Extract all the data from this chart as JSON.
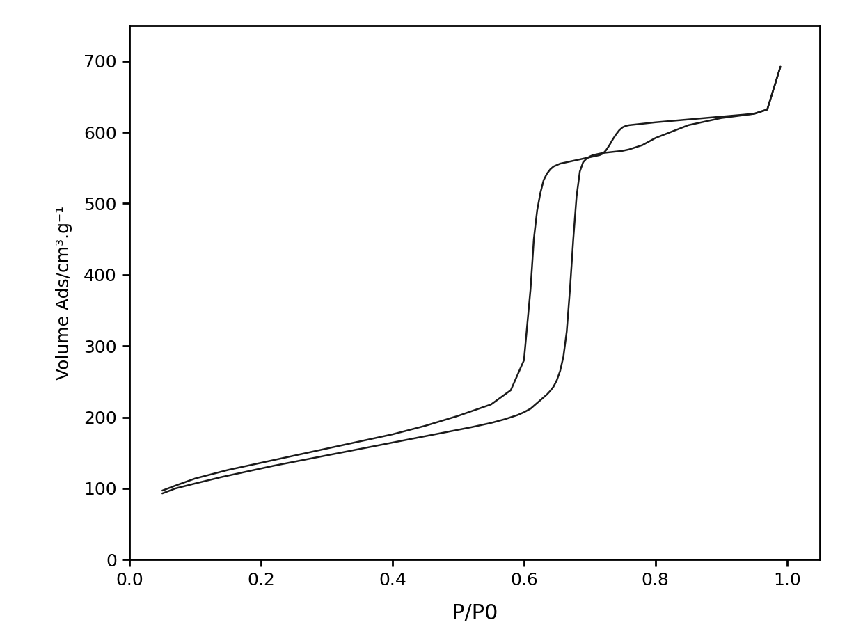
{
  "title": "",
  "xlabel": "P/P0",
  "ylabel": "Volume Ads/cm³.g⁻¹",
  "xlim": [
    0.0,
    1.05
  ],
  "ylim": [
    0,
    750
  ],
  "yticks": [
    0,
    100,
    200,
    300,
    400,
    500,
    600,
    700
  ],
  "xticks": [
    0.0,
    0.2,
    0.4,
    0.6,
    0.8,
    1.0
  ],
  "background_color": "#ffffff",
  "line_color": "#1a1a1a",
  "adsorption_x": [
    0.05,
    0.07,
    0.1,
    0.14,
    0.18,
    0.22,
    0.27,
    0.32,
    0.37,
    0.42,
    0.47,
    0.52,
    0.55,
    0.57,
    0.59,
    0.6,
    0.61,
    0.615,
    0.62,
    0.625,
    0.63,
    0.635,
    0.64,
    0.645,
    0.65,
    0.655,
    0.66,
    0.665,
    0.67,
    0.675,
    0.68,
    0.685,
    0.69,
    0.695,
    0.7,
    0.705,
    0.71,
    0.715,
    0.72,
    0.73,
    0.74,
    0.75,
    0.76,
    0.78,
    0.8,
    0.85,
    0.9,
    0.95,
    0.97,
    0.99
  ],
  "adsorption_y": [
    93,
    100,
    107,
    116,
    124,
    132,
    141,
    150,
    159,
    168,
    177,
    186,
    192,
    197,
    203,
    207,
    212,
    216,
    220,
    224,
    228,
    232,
    237,
    243,
    252,
    265,
    285,
    320,
    380,
    450,
    510,
    545,
    558,
    563,
    566,
    568,
    569,
    570,
    571,
    572,
    573,
    574,
    576,
    582,
    592,
    610,
    620,
    626,
    632,
    692
  ],
  "desorption_x": [
    0.99,
    0.97,
    0.95,
    0.9,
    0.85,
    0.8,
    0.78,
    0.77,
    0.76,
    0.755,
    0.75,
    0.745,
    0.74,
    0.735,
    0.73,
    0.725,
    0.72,
    0.715,
    0.71,
    0.705,
    0.7,
    0.695,
    0.69,
    0.685,
    0.68,
    0.675,
    0.67,
    0.665,
    0.66,
    0.655,
    0.65,
    0.645,
    0.64,
    0.635,
    0.63,
    0.625,
    0.62,
    0.615,
    0.61,
    0.6,
    0.58,
    0.55,
    0.5,
    0.45,
    0.4,
    0.35,
    0.3,
    0.25,
    0.2,
    0.15,
    0.1,
    0.07,
    0.05
  ],
  "desorption_y": [
    692,
    632,
    626,
    622,
    618,
    614,
    612,
    611,
    610,
    609,
    607,
    603,
    597,
    590,
    582,
    575,
    570,
    568,
    567,
    566,
    565,
    564,
    563,
    562,
    561,
    560,
    559,
    558,
    557,
    556,
    554,
    552,
    548,
    542,
    533,
    515,
    490,
    450,
    380,
    280,
    238,
    218,
    202,
    188,
    176,
    166,
    156,
    146,
    136,
    126,
    114,
    104,
    97
  ]
}
